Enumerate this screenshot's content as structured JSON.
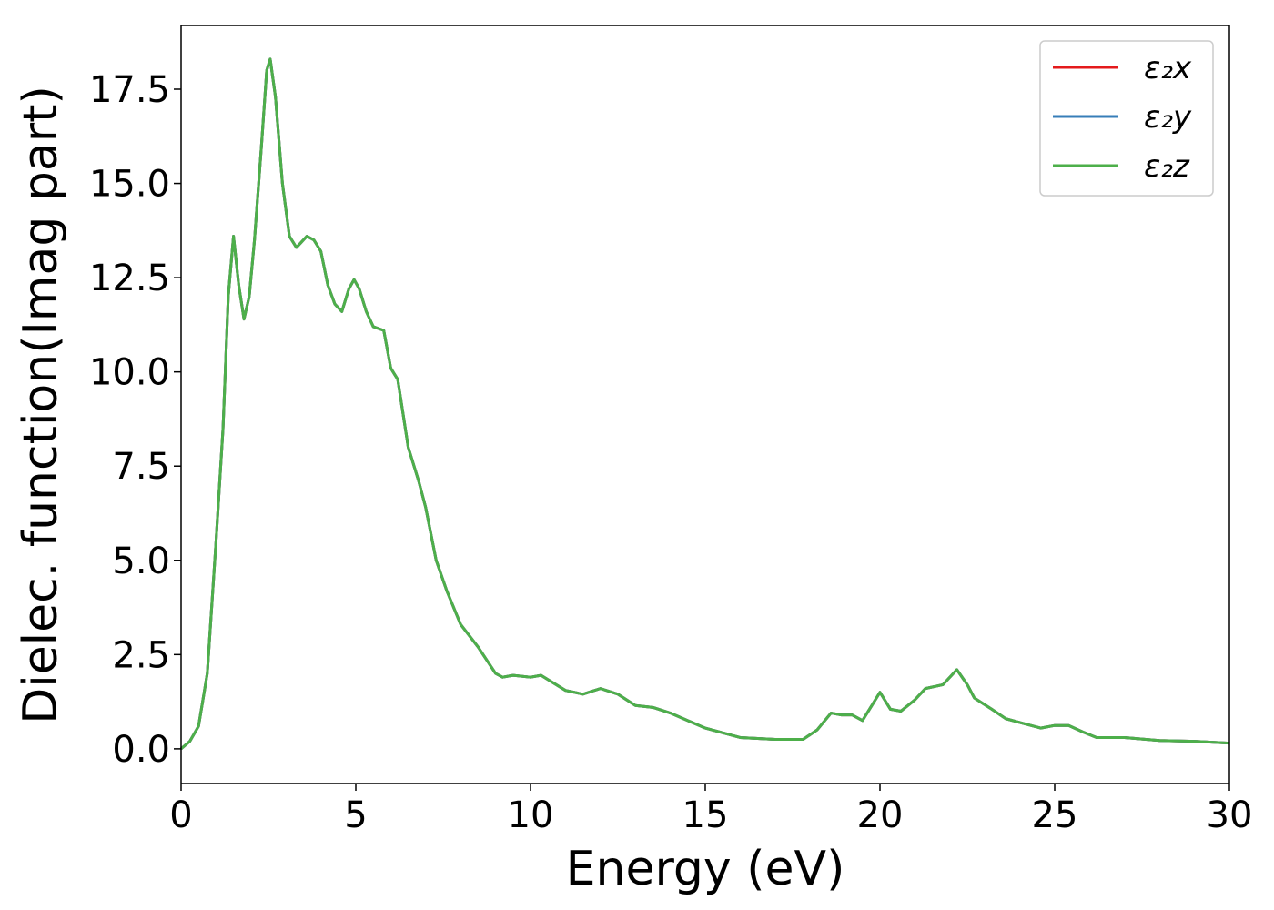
{
  "chart_data": {
    "type": "line",
    "xlabel": "Energy (eV)",
    "ylabel": "Dielec. function(Imag part)",
    "x": [
      0,
      0.25,
      0.5,
      0.75,
      1.0,
      1.2,
      1.35,
      1.5,
      1.65,
      1.8,
      1.95,
      2.1,
      2.3,
      2.45,
      2.55,
      2.7,
      2.9,
      3.1,
      3.3,
      3.5,
      3.6,
      3.8,
      4.0,
      4.2,
      4.4,
      4.6,
      4.8,
      4.95,
      5.1,
      5.3,
      5.5,
      5.8,
      6.0,
      6.2,
      6.5,
      6.8,
      7.0,
      7.3,
      7.6,
      8.0,
      8.5,
      9.0,
      9.2,
      9.5,
      10.0,
      10.3,
      11.0,
      11.5,
      12.0,
      12.5,
      13.0,
      13.5,
      14.0,
      14.5,
      15.0,
      16.0,
      17.0,
      17.8,
      18.2,
      18.6,
      18.9,
      19.2,
      19.5,
      19.8,
      20.0,
      20.3,
      20.6,
      21.0,
      21.3,
      21.8,
      22.2,
      22.5,
      22.7,
      23.2,
      23.6,
      24.0,
      24.6,
      25.0,
      25.4,
      25.8,
      26.2,
      27.0,
      28.0,
      29.0,
      30.0
    ],
    "series": [
      {
        "name": "ε₂x",
        "color": "#e41a1c",
        "values": [
          0.0,
          0.2,
          0.6,
          2.0,
          5.5,
          8.5,
          12.0,
          13.6,
          12.3,
          11.4,
          12.0,
          13.5,
          16.0,
          18.0,
          18.3,
          17.3,
          15.0,
          13.6,
          13.3,
          13.5,
          13.6,
          13.5,
          13.2,
          12.3,
          11.8,
          11.6,
          12.2,
          12.45,
          12.2,
          11.6,
          11.2,
          11.1,
          10.1,
          9.8,
          8.0,
          7.1,
          6.4,
          5.0,
          4.2,
          3.3,
          2.7,
          2.0,
          1.9,
          1.95,
          1.9,
          1.95,
          1.55,
          1.45,
          1.6,
          1.45,
          1.15,
          1.1,
          0.95,
          0.75,
          0.55,
          0.3,
          0.25,
          0.25,
          0.5,
          0.95,
          0.9,
          0.9,
          0.75,
          1.2,
          1.5,
          1.05,
          1.0,
          1.3,
          1.6,
          1.7,
          2.1,
          1.7,
          1.35,
          1.05,
          0.8,
          0.7,
          0.55,
          0.62,
          0.62,
          0.45,
          0.3,
          0.3,
          0.22,
          0.2,
          0.15
        ]
      },
      {
        "name": "ε₂y",
        "color": "#377eb8",
        "values": [
          0.0,
          0.2,
          0.6,
          2.0,
          5.5,
          8.5,
          12.0,
          13.6,
          12.3,
          11.4,
          12.0,
          13.5,
          16.0,
          18.0,
          18.3,
          17.3,
          15.0,
          13.6,
          13.3,
          13.5,
          13.6,
          13.5,
          13.2,
          12.3,
          11.8,
          11.6,
          12.2,
          12.45,
          12.2,
          11.6,
          11.2,
          11.1,
          10.1,
          9.8,
          8.0,
          7.1,
          6.4,
          5.0,
          4.2,
          3.3,
          2.7,
          2.0,
          1.9,
          1.95,
          1.9,
          1.95,
          1.55,
          1.45,
          1.6,
          1.45,
          1.15,
          1.1,
          0.95,
          0.75,
          0.55,
          0.3,
          0.25,
          0.25,
          0.5,
          0.95,
          0.9,
          0.9,
          0.75,
          1.2,
          1.5,
          1.05,
          1.0,
          1.3,
          1.6,
          1.7,
          2.1,
          1.7,
          1.35,
          1.05,
          0.8,
          0.7,
          0.55,
          0.62,
          0.62,
          0.45,
          0.3,
          0.3,
          0.22,
          0.2,
          0.15
        ]
      },
      {
        "name": "ε₂z",
        "color": "#4daf4a",
        "values": [
          0.0,
          0.2,
          0.6,
          2.0,
          5.5,
          8.5,
          12.0,
          13.6,
          12.3,
          11.4,
          12.0,
          13.5,
          16.0,
          18.0,
          18.3,
          17.3,
          15.0,
          13.6,
          13.3,
          13.5,
          13.6,
          13.5,
          13.2,
          12.3,
          11.8,
          11.6,
          12.2,
          12.45,
          12.2,
          11.6,
          11.2,
          11.1,
          10.1,
          9.8,
          8.0,
          7.1,
          6.4,
          5.0,
          4.2,
          3.3,
          2.7,
          2.0,
          1.9,
          1.95,
          1.9,
          1.95,
          1.55,
          1.45,
          1.6,
          1.45,
          1.15,
          1.1,
          0.95,
          0.75,
          0.55,
          0.3,
          0.25,
          0.25,
          0.5,
          0.95,
          0.9,
          0.9,
          0.75,
          1.2,
          1.5,
          1.05,
          1.0,
          1.3,
          1.6,
          1.7,
          2.1,
          1.7,
          1.35,
          1.05,
          0.8,
          0.7,
          0.55,
          0.62,
          0.62,
          0.45,
          0.3,
          0.3,
          0.22,
          0.2,
          0.15
        ]
      }
    ],
    "xlim": [
      0,
      30
    ],
    "xticks": [
      0,
      5,
      10,
      15,
      20,
      25,
      30
    ],
    "ylim": [
      -0.92,
      19.19
    ],
    "yticks": [
      {
        "value": 0,
        "label": "0.0"
      },
      2.5,
      {
        "value": 5,
        "label": "5.0"
      },
      7.5,
      {
        "value": 10,
        "label": "10.0"
      },
      12.5,
      {
        "value": 15,
        "label": "15.0"
      },
      17.5
    ],
    "legend": "upper right"
  }
}
